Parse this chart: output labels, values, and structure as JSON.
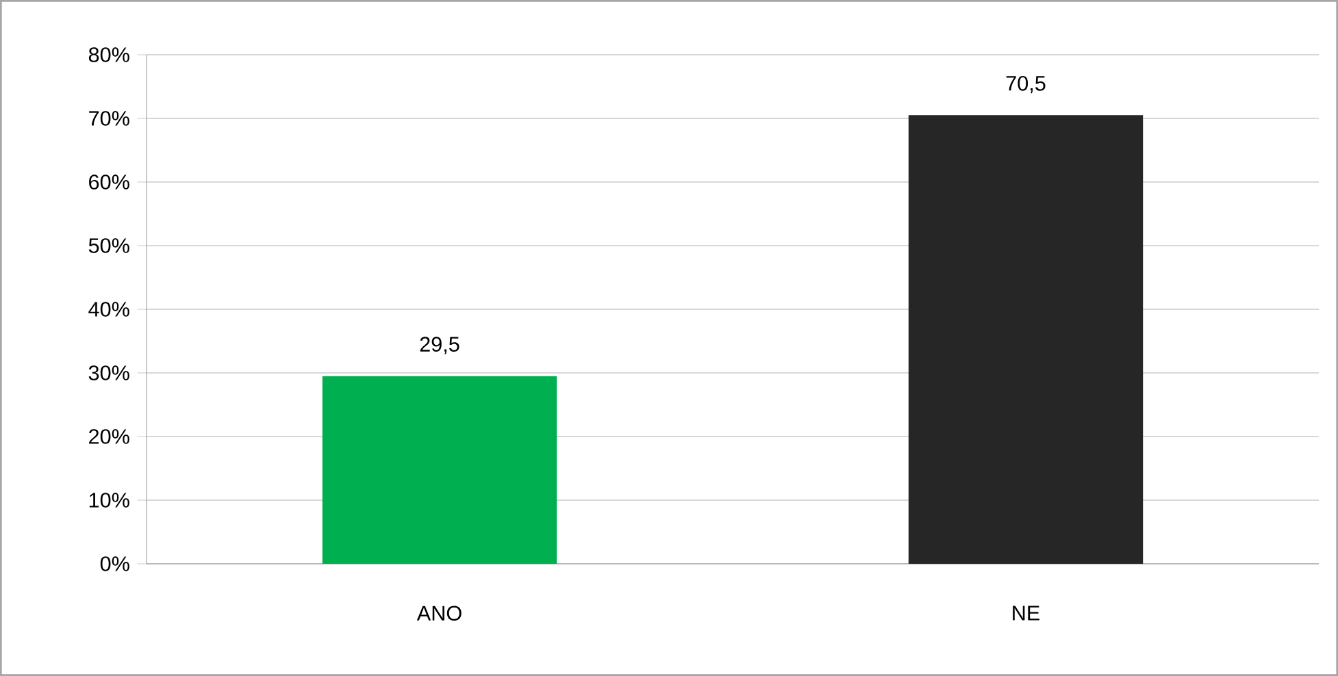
{
  "chart_data": {
    "type": "bar",
    "categories": [
      "ANO",
      "NE"
    ],
    "values": [
      29.5,
      70.5
    ],
    "colors": [
      "#00b050",
      "#262626"
    ],
    "value_labels": [
      "29,5",
      "70,5"
    ],
    "ylim": [
      0,
      80
    ],
    "yticks": [
      {
        "value": 0,
        "label": "0%"
      },
      {
        "value": 10,
        "label": "10%"
      },
      {
        "value": 20,
        "label": "20%"
      },
      {
        "value": 30,
        "label": "30%"
      },
      {
        "value": 40,
        "label": "40%"
      },
      {
        "value": 50,
        "label": "50%"
      },
      {
        "value": 60,
        "label": "60%"
      },
      {
        "value": 70,
        "label": "70%"
      },
      {
        "value": 80,
        "label": "80%"
      }
    ],
    "grid": "y"
  }
}
